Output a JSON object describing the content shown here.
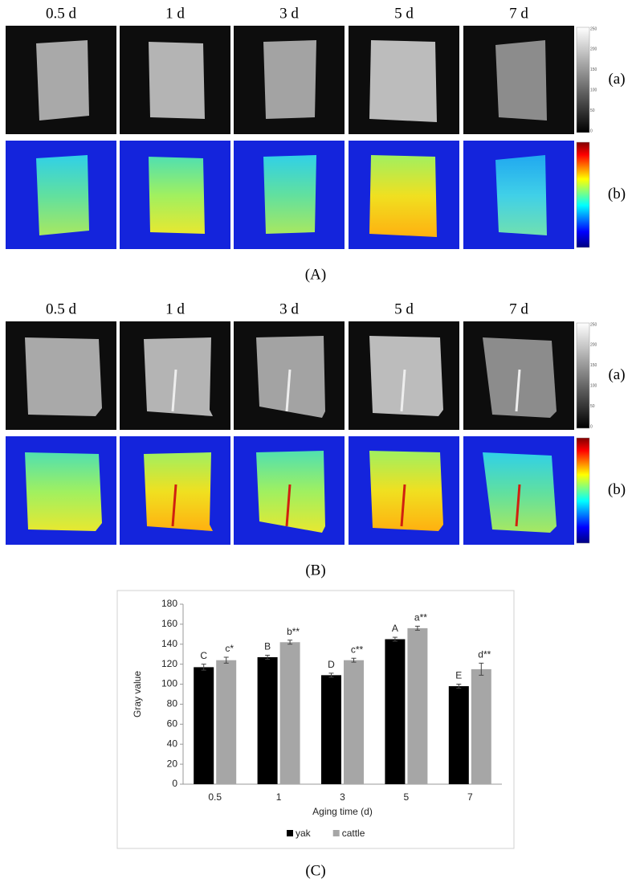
{
  "panel_A": {
    "day_labels": [
      "0.5 d",
      "1 d",
      "3 d",
      "5 d",
      "7 d"
    ],
    "row_labels": [
      "(a)",
      "(b)"
    ],
    "colorbar_ticks": [
      0,
      50,
      100,
      150,
      200,
      250
    ],
    "label": "(A)"
  },
  "panel_B": {
    "day_labels": [
      "0.5 d",
      "1 d",
      "3 d",
      "5 d",
      "7 d"
    ],
    "row_labels": [
      "(a)",
      "(b)"
    ],
    "colorbar_ticks": [
      0,
      50,
      100,
      150,
      200,
      250
    ],
    "label": "(B)"
  },
  "panel_C": {
    "label": "(C)"
  },
  "chart_data": {
    "type": "bar",
    "x_label": "Aging time (d)",
    "y_label": "Gray value",
    "categories": [
      "0.5",
      "1",
      "3",
      "5",
      "7"
    ],
    "series": [
      {
        "name": "yak",
        "color": "#000000",
        "values": [
          117,
          127,
          109,
          145,
          98
        ],
        "errors": [
          3,
          2,
          2,
          2,
          2
        ],
        "annotations": [
          "C",
          "B",
          "D",
          "A",
          "E"
        ]
      },
      {
        "name": "cattle",
        "color": "#a6a6a6",
        "values": [
          124,
          142,
          124,
          156,
          115
        ],
        "errors": [
          3,
          2,
          2,
          2,
          6
        ],
        "annotations": [
          "c*",
          "b**",
          "c**",
          "a**",
          "d**"
        ]
      }
    ],
    "ylim": [
      0,
      180
    ],
    "yticks": [
      0,
      20,
      40,
      60,
      80,
      100,
      120,
      140,
      160,
      180
    ],
    "legend": "bottom"
  }
}
